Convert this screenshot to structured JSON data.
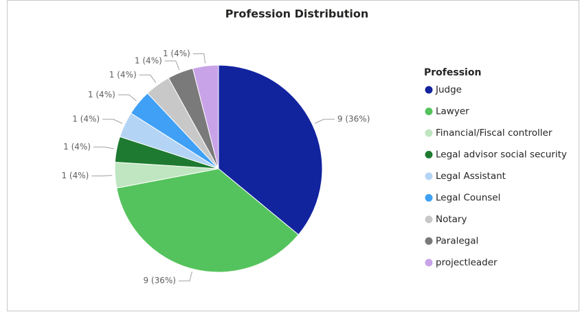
{
  "chart_data": {
    "type": "pie",
    "title": "Profession Distribution",
    "legend_title": "Profession",
    "legend": "right",
    "categories": [
      "Judge",
      "Lawyer",
      "Financial/Fiscal controller",
      "Legal advisor social security",
      "Legal Assistant",
      "Legal Counsel",
      "Notary",
      "Paralegal",
      "projectleader"
    ],
    "values": [
      9,
      9,
      1,
      1,
      1,
      1,
      1,
      1,
      1
    ],
    "value_labels": [
      "9 (36%)",
      "9 (36%)",
      "1 (4%)",
      "1 (4%)",
      "1 (4%)",
      "1 (4%)",
      "1 (4%)",
      "1 (4%)",
      "1 (4%)"
    ],
    "colors": [
      "#12239e",
      "#55c35d",
      "#bfe6c0",
      "#1e7a30",
      "#b4d4f5",
      "#3fa0f5",
      "#c8c8c8",
      "#7a7a7a",
      "#c9a3e8"
    ]
  }
}
